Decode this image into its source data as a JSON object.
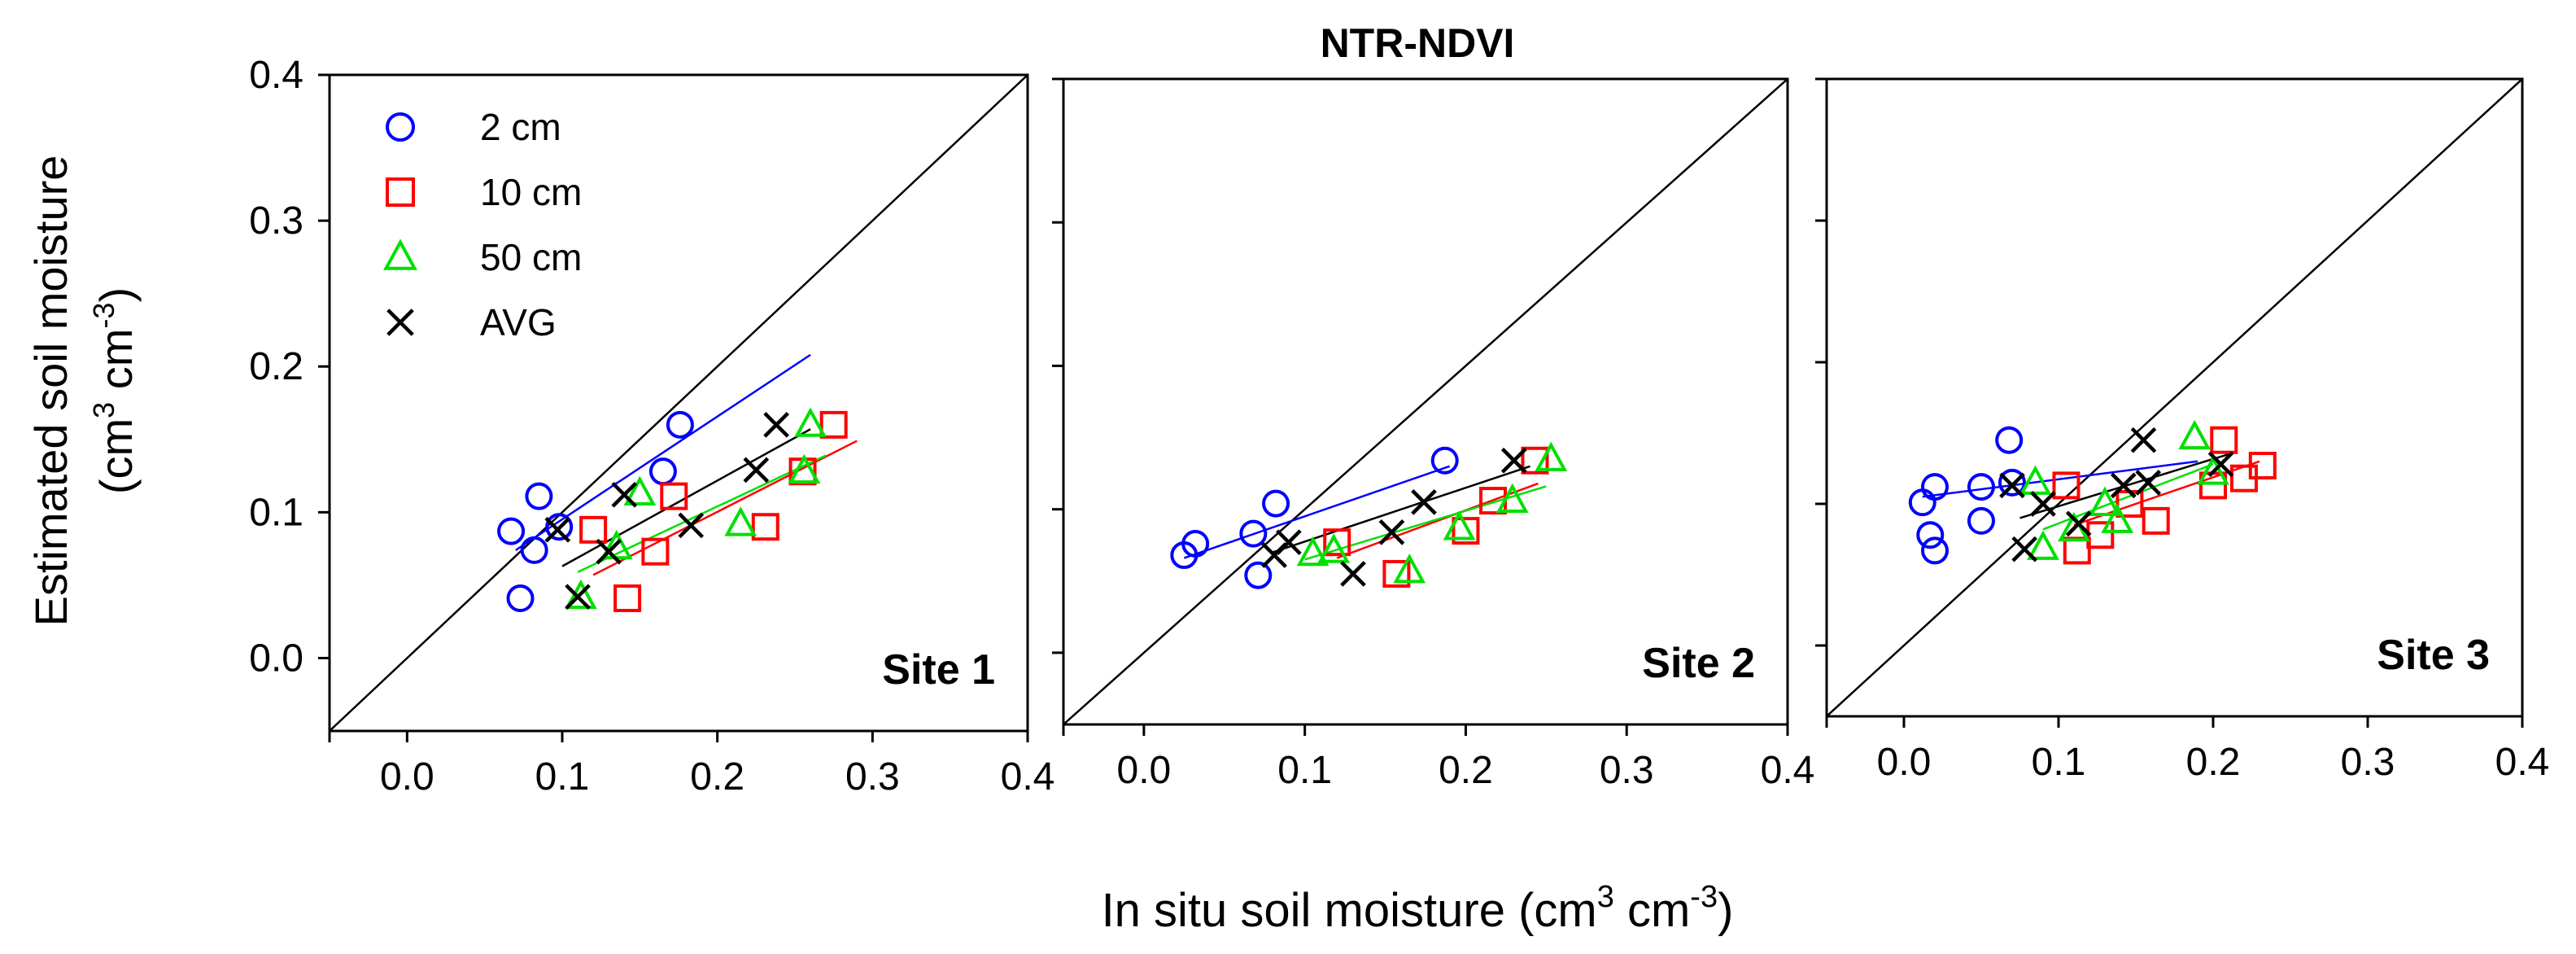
{
  "title": "NTR-NDVI",
  "xlabel_main": "In situ soil moisture (cm",
  "xlabel_sup1": "3",
  "xlabel_mid": " cm",
  "xlabel_sup2": "-3",
  "xlabel_end": ")",
  "ylabel_line1": "Estimated soil moisture",
  "ylabel_open": "(cm",
  "ylabel_sup1": "3",
  "ylabel_mid": " cm",
  "ylabel_sup2": "-3",
  "ylabel_end": ")",
  "legend": [
    {
      "label": "2 cm",
      "marker": "circle",
      "color": "#0000ff"
    },
    {
      "label": "10 cm",
      "marker": "square",
      "color": "#ff0000"
    },
    {
      "label": "50 cm",
      "marker": "triangle",
      "color": "#00e000"
    },
    {
      "label": "AVG",
      "marker": "x",
      "color": "#000000"
    }
  ],
  "chart_data": [
    {
      "type": "scatter",
      "site_label": "Site 1",
      "xlim": [
        -0.05,
        0.4
      ],
      "ylim": [
        -0.05,
        0.4
      ],
      "x_ticks": [
        "0.0",
        "0.1",
        "0.2",
        "0.3",
        "0.4"
      ],
      "y_ticks": [
        "0.0",
        "0.1",
        "0.2",
        "0.3",
        "0.4"
      ],
      "one_to_one_line": true,
      "series": [
        {
          "name": "2 cm",
          "points": [
            [
              0.067,
              0.087
            ],
            [
              0.073,
              0.041
            ],
            [
              0.082,
              0.074
            ],
            [
              0.085,
              0.111
            ],
            [
              0.098,
              0.09
            ],
            [
              0.165,
              0.128
            ],
            [
              0.176,
              0.16
            ]
          ],
          "fit": [
            [
              0.07,
              0.074
            ],
            [
              0.26,
              0.208
            ]
          ]
        },
        {
          "name": "10 cm",
          "points": [
            [
              0.12,
              0.088
            ],
            [
              0.16,
              0.073
            ],
            [
              0.172,
              0.111
            ],
            [
              0.142,
              0.041
            ],
            [
              0.231,
              0.09
            ],
            [
              0.255,
              0.128
            ],
            [
              0.275,
              0.16
            ]
          ],
          "fit": [
            [
              0.12,
              0.057
            ],
            [
              0.29,
              0.149
            ]
          ]
        },
        {
          "name": "50 cm",
          "points": [
            [
              0.112,
              0.042
            ],
            [
              0.135,
              0.076
            ],
            [
              0.15,
              0.113
            ],
            [
              0.215,
              0.092
            ],
            [
              0.256,
              0.128
            ],
            [
              0.26,
              0.16
            ]
          ],
          "fit": [
            [
              0.11,
              0.059
            ],
            [
              0.27,
              0.139
            ]
          ]
        },
        {
          "name": "AVG",
          "points": [
            [
              0.097,
              0.088
            ],
            [
              0.11,
              0.042
            ],
            [
              0.13,
              0.073
            ],
            [
              0.14,
              0.112
            ],
            [
              0.183,
              0.091
            ],
            [
              0.225,
              0.129
            ],
            [
              0.238,
              0.16
            ]
          ],
          "fit": [
            [
              0.1,
              0.063
            ],
            [
              0.26,
              0.157
            ]
          ]
        }
      ]
    },
    {
      "type": "scatter",
      "site_label": "Site 2",
      "xlim": [
        -0.05,
        0.4
      ],
      "ylim": [
        -0.05,
        0.4
      ],
      "x_ticks": [
        "0.0",
        "0.1",
        "0.2",
        "0.3",
        "0.4"
      ],
      "y_ticks": [],
      "one_to_one_line": true,
      "series": [
        {
          "name": "2 cm",
          "points": [
            [
              0.025,
              0.068
            ],
            [
              0.032,
              0.076
            ],
            [
              0.068,
              0.083
            ],
            [
              0.071,
              0.054
            ],
            [
              0.082,
              0.104
            ],
            [
              0.187,
              0.134
            ]
          ],
          "fit": [
            [
              0.025,
              0.066
            ],
            [
              0.19,
              0.13
            ]
          ]
        },
        {
          "name": "10 cm",
          "points": [
            [
              0.12,
              0.077
            ],
            [
              0.157,
              0.055
            ],
            [
              0.2,
              0.085
            ],
            [
              0.217,
              0.106
            ],
            [
              0.243,
              0.134
            ]
          ],
          "fit": [
            [
              0.12,
              0.066
            ],
            [
              0.245,
              0.118
            ]
          ]
        },
        {
          "name": "50 cm",
          "points": [
            [
              0.105,
              0.069
            ],
            [
              0.118,
              0.071
            ],
            [
              0.165,
              0.057
            ],
            [
              0.196,
              0.087
            ],
            [
              0.229,
              0.106
            ],
            [
              0.253,
              0.135
            ]
          ],
          "fit": [
            [
              0.1,
              0.065
            ],
            [
              0.25,
              0.116
            ]
          ]
        },
        {
          "name": "AVG",
          "points": [
            [
              0.081,
              0.068
            ],
            [
              0.09,
              0.077
            ],
            [
              0.13,
              0.055
            ],
            [
              0.154,
              0.084
            ],
            [
              0.174,
              0.105
            ],
            [
              0.23,
              0.134
            ]
          ],
          "fit": [
            [
              0.08,
              0.07
            ],
            [
              0.24,
              0.13
            ]
          ]
        }
      ]
    },
    {
      "type": "scatter",
      "site_label": "Site 3",
      "xlim": [
        -0.05,
        0.4
      ],
      "ylim": [
        -0.05,
        0.4
      ],
      "x_ticks": [
        "0.0",
        "0.1",
        "0.2",
        "0.3",
        "0.4"
      ],
      "y_ticks": [],
      "one_to_one_line": true,
      "series": [
        {
          "name": "2 cm",
          "points": [
            [
              0.012,
              0.101
            ],
            [
              0.017,
              0.078
            ],
            [
              0.02,
              0.067
            ],
            [
              0.02,
              0.112
            ],
            [
              0.05,
              0.088
            ],
            [
              0.05,
              0.112
            ],
            [
              0.068,
              0.145
            ],
            [
              0.07,
              0.115
            ]
          ],
          "fit": [
            [
              0.012,
              0.105
            ],
            [
              0.19,
              0.13
            ]
          ]
        },
        {
          "name": "10 cm",
          "points": [
            [
              0.105,
              0.113
            ],
            [
              0.112,
              0.067
            ],
            [
              0.127,
              0.078
            ],
            [
              0.146,
              0.1
            ],
            [
              0.163,
              0.088
            ],
            [
              0.2,
              0.113
            ],
            [
              0.207,
              0.145
            ],
            [
              0.22,
              0.118
            ],
            [
              0.232,
              0.127
            ]
          ],
          "fit": [
            [
              0.11,
              0.085
            ],
            [
              0.23,
              0.13
            ]
          ]
        },
        {
          "name": "50 cm",
          "points": [
            [
              0.085,
              0.115
            ],
            [
              0.09,
              0.069
            ],
            [
              0.11,
              0.082
            ],
            [
              0.13,
              0.1
            ],
            [
              0.138,
              0.088
            ],
            [
              0.188,
              0.147
            ],
            [
              0.2,
              0.122
            ]
          ],
          "fit": [
            [
              0.09,
              0.082
            ],
            [
              0.2,
              0.128
            ]
          ]
        },
        {
          "name": "AVG",
          "points": [
            [
              0.07,
              0.113
            ],
            [
              0.078,
              0.068
            ],
            [
              0.09,
              0.1
            ],
            [
              0.113,
              0.086
            ],
            [
              0.142,
              0.113
            ],
            [
              0.155,
              0.145
            ],
            [
              0.158,
              0.115
            ],
            [
              0.205,
              0.128
            ]
          ],
          "fit": [
            [
              0.075,
              0.09
            ],
            [
              0.21,
              0.135
            ]
          ]
        }
      ]
    }
  ]
}
